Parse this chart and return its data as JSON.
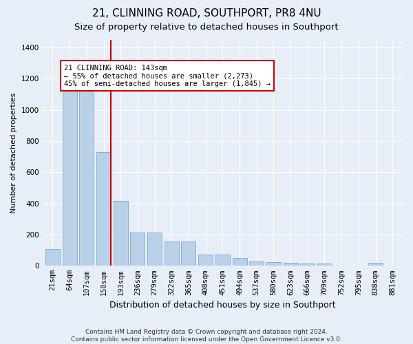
{
  "title": "21, CLINNING ROAD, SOUTHPORT, PR8 4NU",
  "subtitle": "Size of property relative to detached houses in Southport",
  "xlabel": "Distribution of detached houses by size in Southport",
  "ylabel": "Number of detached properties",
  "footer": "Contains HM Land Registry data © Crown copyright and database right 2024.\nContains public sector information licensed under the Open Government Licence v3.0.",
  "categories": [
    "21sqm",
    "64sqm",
    "107sqm",
    "150sqm",
    "193sqm",
    "236sqm",
    "279sqm",
    "322sqm",
    "365sqm",
    "408sqm",
    "451sqm",
    "494sqm",
    "537sqm",
    "580sqm",
    "623sqm",
    "666sqm",
    "709sqm",
    "752sqm",
    "795sqm",
    "838sqm",
    "881sqm"
  ],
  "values": [
    105,
    1160,
    1160,
    730,
    415,
    215,
    215,
    155,
    155,
    70,
    70,
    50,
    30,
    25,
    20,
    15,
    15,
    0,
    0,
    20,
    0
  ],
  "bar_color": "#b8d0e8",
  "bar_edge_color": "#7aaac8",
  "highlight_bar_index": 3,
  "highlight_line_color": "#cc0000",
  "annotation_text": "21 CLINNING ROAD: 143sqm\n← 55% of detached houses are smaller (2,273)\n45% of semi-detached houses are larger (1,845) →",
  "annotation_box_color": "#ffffff",
  "annotation_box_edge_color": "#cc0000",
  "ylim": [
    0,
    1450
  ],
  "yticks": [
    0,
    200,
    400,
    600,
    800,
    1000,
    1200,
    1400
  ],
  "bg_color": "#e8eef8",
  "plot_bg_color": "#e8eef8",
  "title_fontsize": 11,
  "subtitle_fontsize": 9.5,
  "xlabel_fontsize": 9,
  "ylabel_fontsize": 8,
  "tick_fontsize": 7.5,
  "footer_fontsize": 6.5
}
